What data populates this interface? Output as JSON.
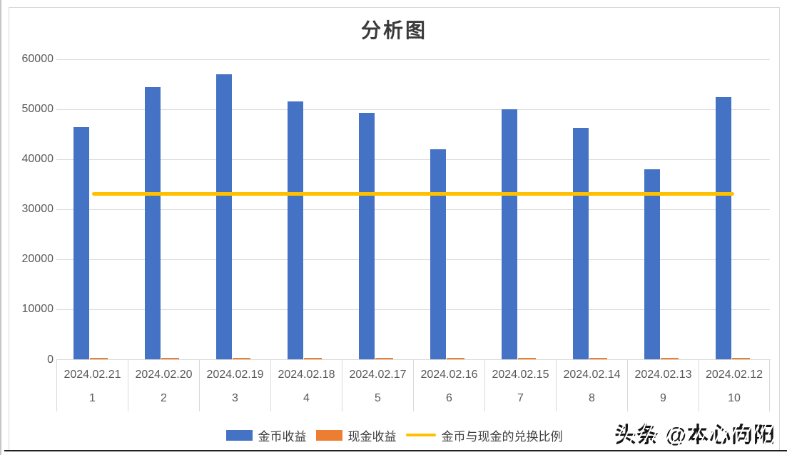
{
  "watermark": "头条 @本心向阳",
  "chart_data": {
    "type": "bar",
    "title": "分析图",
    "categories": [
      "2024.02.21",
      "2024.02.20",
      "2024.02.19",
      "2024.02.18",
      "2024.02.17",
      "2024.02.16",
      "2024.02.15",
      "2024.02.14",
      "2024.02.13",
      "2024.02.12"
    ],
    "category_indices": [
      "1",
      "2",
      "3",
      "4",
      "5",
      "6",
      "7",
      "8",
      "9",
      "10"
    ],
    "series": [
      {
        "name": "金币收益",
        "type": "bar",
        "color": "#4472C4",
        "values": [
          46400,
          54300,
          56900,
          51500,
          49300,
          42000,
          50000,
          46300,
          38000,
          52400
        ]
      },
      {
        "name": "现金收益",
        "type": "bar",
        "color": "#ED7D31",
        "values": [
          400,
          400,
          400,
          400,
          400,
          400,
          400,
          400,
          400,
          400
        ]
      },
      {
        "name": "金币与现金的兑换比例",
        "type": "line",
        "color": "#FFC000",
        "values": [
          33100,
          33100,
          33100,
          33100,
          33100,
          33100,
          33100,
          33100,
          33100,
          33100
        ]
      }
    ],
    "y_axis": {
      "min": 0,
      "max": 60000,
      "step": 10000,
      "tick_labels": [
        "0",
        "10000",
        "20000",
        "30000",
        "40000",
        "50000",
        "60000"
      ]
    },
    "xlabel": "",
    "ylabel": "",
    "ylim": [
      0,
      60000
    ],
    "grid": true,
    "legend_position": "bottom",
    "colors": {
      "gridline": "#D9D9D9",
      "axis_text": "#595959"
    }
  }
}
